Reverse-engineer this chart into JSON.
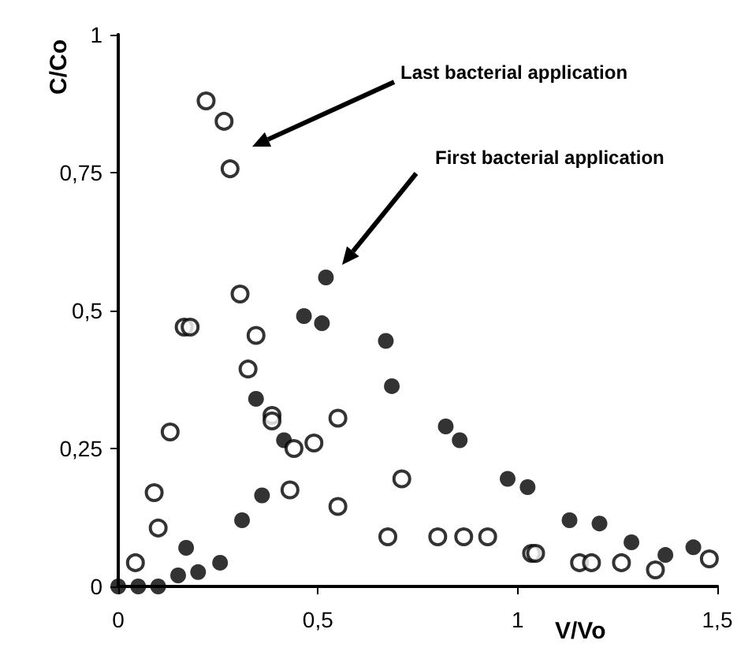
{
  "chart_data": {
    "type": "scatter",
    "xlabel": "V/Vo",
    "ylabel": "C/Co",
    "xlim": [
      0,
      1.5
    ],
    "xticks": [
      0,
      {
        "value": 0.5,
        "label": "0,5"
      },
      1,
      {
        "value": 1.5,
        "label": "1,5"
      }
    ],
    "ylim": [
      0,
      1
    ],
    "yticks": [
      0,
      {
        "value": 0.25,
        "label": "0,25"
      },
      {
        "value": 0.5,
        "label": "0,5"
      },
      {
        "value": 0.75,
        "label": "0,75"
      },
      1
    ],
    "grid": false,
    "annotations": [
      "Last bacterial application",
      "First bacterial application"
    ],
    "series": [
      {
        "color": "#000000",
        "marker": "circle",
        "x": [
          0,
          0.05,
          0.1,
          0.15,
          0.17,
          0.2,
          0.255,
          0.31,
          0.345,
          0.36,
          0.415,
          0.465,
          0.51,
          0.52,
          0.67,
          0.685,
          0.82,
          0.855,
          0.975,
          1.025,
          1.13,
          1.205,
          1.285,
          1.37,
          1.44
        ],
        "values": [
          0,
          0,
          0,
          0.02,
          0.07,
          0.026,
          0.043,
          0.12,
          0.34,
          0.165,
          0.265,
          0.49,
          0.477,
          0.56,
          0.445,
          0.363,
          0.29,
          0.265,
          0.195,
          0.18,
          0.12,
          0.114,
          0.08,
          0.057,
          0.071
        ]
      },
      {
        "color": "#000000",
        "marker": "emptyCircle",
        "x": [
          0.043,
          0.09,
          0.1,
          0.13,
          0.165,
          0.18,
          0.22,
          0.265,
          0.28,
          0.305,
          0.325,
          0.345,
          0.385,
          0.385,
          0.43,
          0.44,
          0.49,
          0.55,
          0.55,
          0.675,
          0.71,
          0.8,
          0.865,
          0.925,
          1.035,
          1.045,
          1.155,
          1.185,
          1.26,
          1.345,
          1.48
        ],
        "values": [
          0.043,
          0.17,
          0.106,
          0.28,
          0.47,
          0.47,
          0.88,
          0.843,
          0.757,
          0.53,
          0.394,
          0.455,
          0.31,
          0.3,
          0.175,
          0.25,
          0.26,
          0.305,
          0.145,
          0.09,
          0.195,
          0.09,
          0.09,
          0.09,
          0.06,
          0.06,
          0.043,
          0.043,
          0.043,
          0.03,
          0.05
        ]
      }
    ]
  }
}
